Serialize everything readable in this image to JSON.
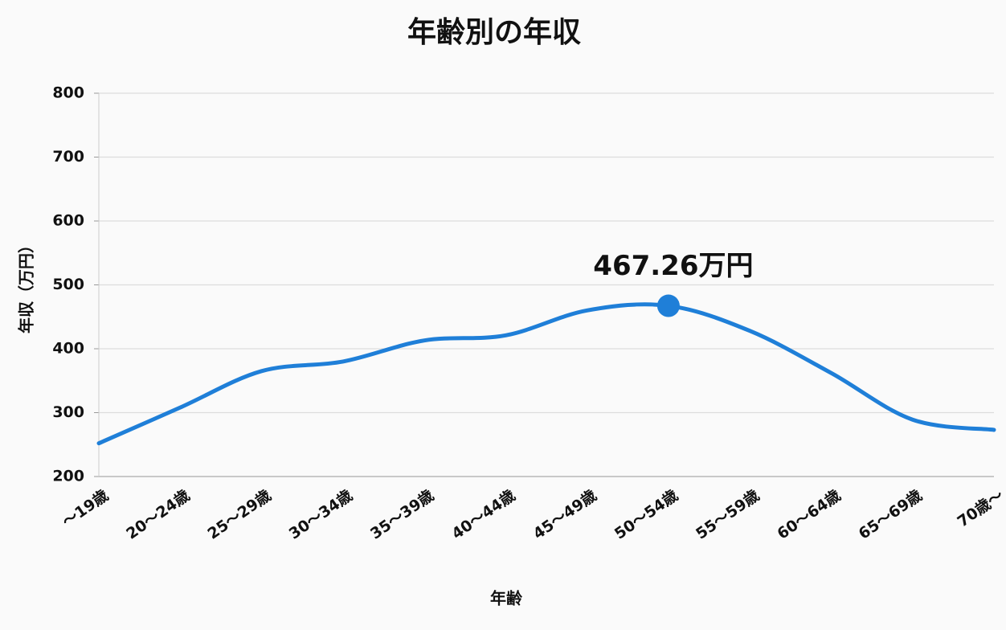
{
  "chart_data": {
    "type": "line",
    "title": "年齢別の年収",
    "x_label": "年齢",
    "y_label": "年収（万円）",
    "categories": [
      "〜19歳",
      "20〜24歳",
      "25〜29歳",
      "30〜34歳",
      "35〜39歳",
      "40〜44歳",
      "45〜49歳",
      "50〜54歳",
      "55〜59歳",
      "60〜64歳",
      "65〜69歳",
      "70歳〜"
    ],
    "series": [
      {
        "name": "年収",
        "color": "#1f7fd8",
        "values": [
          252,
          308,
          365,
          380,
          413,
          421,
          460,
          467.26,
          428,
          362,
          289,
          273
        ],
        "value_labels": [
          null,
          null,
          null,
          null,
          null,
          null,
          null,
          "467.26万円",
          null,
          null,
          null,
          null
        ]
      }
    ],
    "ylim": [
      200,
      800
    ],
    "yticks": [
      200,
      300,
      400,
      500,
      600,
      700,
      800
    ],
    "grid": true
  }
}
